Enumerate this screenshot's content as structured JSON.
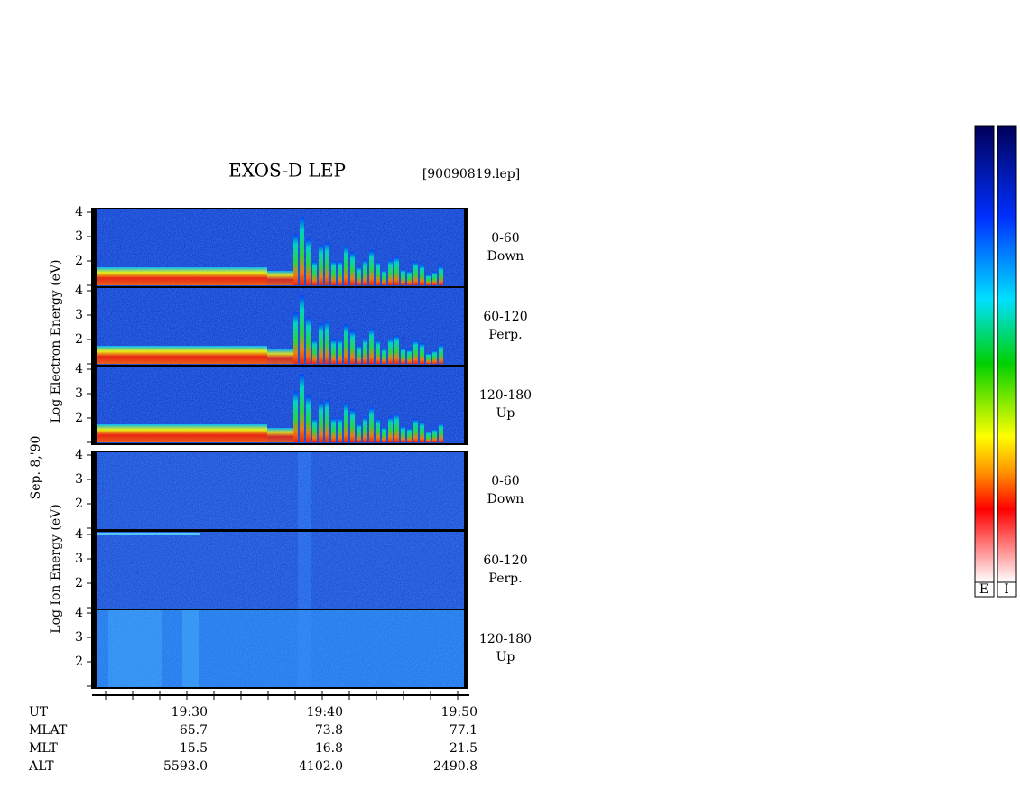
{
  "header": {
    "title": "EXOS-D LEP",
    "file": "[90090819.lep]"
  },
  "side_labels": {
    "electron": "Log  Electron  Energy (eV)",
    "date": "Sep. 8,'90",
    "ion": "Log  Ion  Energy (eV)"
  },
  "panels": [
    {
      "yticks": [
        "2",
        "3",
        "4"
      ],
      "range": "0-60",
      "direction": "Down"
    },
    {
      "yticks": [
        "2",
        "3",
        "4"
      ],
      "range": "60-120",
      "direction": "Perp."
    },
    {
      "yticks": [
        "2",
        "3",
        "4"
      ],
      "range": "120-180",
      "direction": "Up"
    },
    {
      "yticks": [
        "2",
        "3",
        "4"
      ],
      "range": "0-60",
      "direction": "Down"
    },
    {
      "yticks": [
        "2",
        "3",
        "4"
      ],
      "range": "60-120",
      "direction": "Perp."
    },
    {
      "yticks": [
        "2",
        "3",
        "4"
      ],
      "range": "120-180",
      "direction": "Up"
    }
  ],
  "orbit": {
    "labels": [
      "UT",
      "MLAT",
      "MLT",
      "ALT"
    ],
    "values": [
      [
        "19:30",
        "19:40",
        "19:50"
      ],
      [
        "65.7",
        "73.8",
        "77.1"
      ],
      [
        "15.5",
        "16.8",
        "21.5"
      ],
      [
        "5593.0",
        "4102.0",
        "2490.8"
      ]
    ]
  },
  "colorbar": {
    "labels": [
      "E",
      "I"
    ]
  }
}
